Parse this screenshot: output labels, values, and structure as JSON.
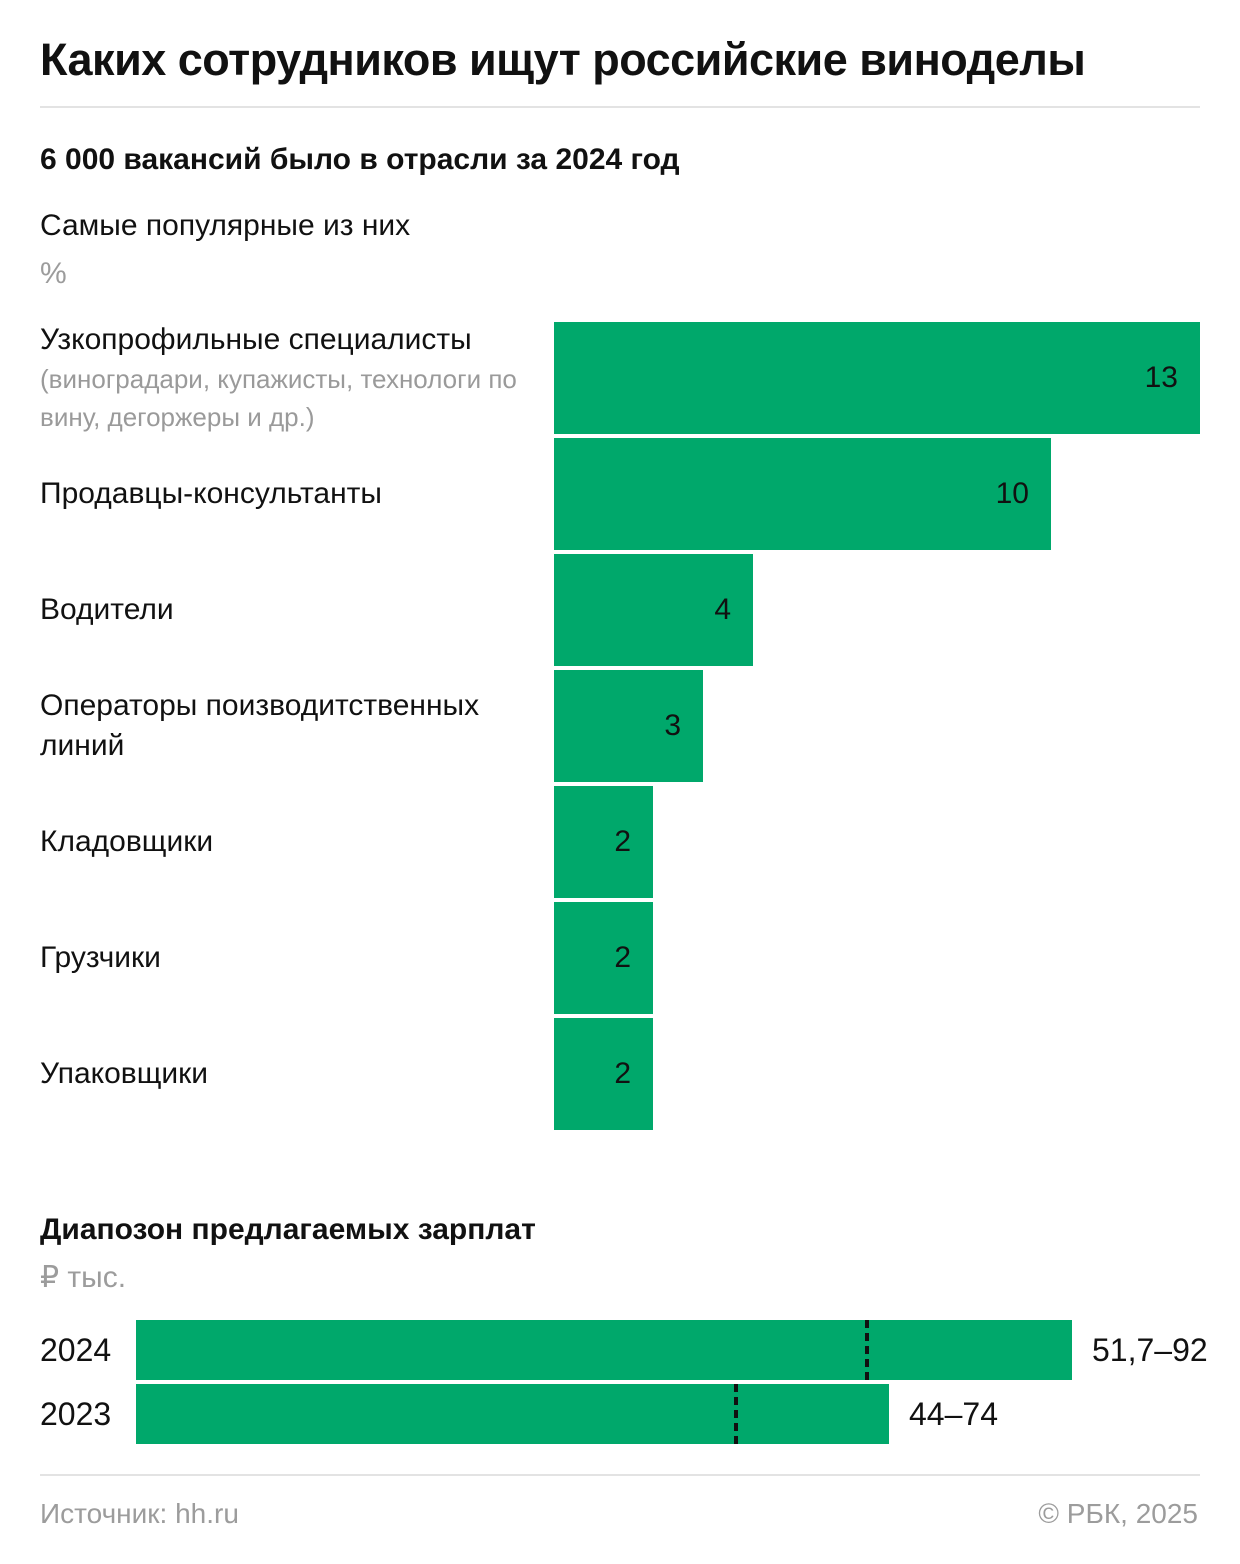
{
  "title": "Каких сотрудников ищут российские виноделы",
  "subtitle": "6 000 вакансий было в отрасли за 2024 год",
  "chart_data": [
    {
      "type": "bar",
      "title": "Самые популярные из них",
      "unit": "%",
      "categories": [
        {
          "label": "Узкопрофильные специалисты",
          "note": "(виноградари, купажисты, технологи по вину, дегоржеры и др.)",
          "value": 13
        },
        {
          "label": "Продавцы-консультанты",
          "note": "",
          "value": 10
        },
        {
          "label": "Водители",
          "note": "",
          "value": 4
        },
        {
          "label": "Операторы поизводитственных линий",
          "note": "",
          "value": 3
        },
        {
          "label": "Кладовщики",
          "note": "",
          "value": 2
        },
        {
          "label": "Грузчики",
          "note": "",
          "value": 2
        },
        {
          "label": "Упаковщики",
          "note": "",
          "value": 2
        }
      ],
      "xlim": [
        0,
        13
      ],
      "color": "#00a86b"
    },
    {
      "type": "bar",
      "title": "Диапозон предлагаемых зарплат",
      "unit": "₽ тыс.",
      "series": [
        {
          "year": "2024",
          "range_label": "51,7–92",
          "min": 51.7,
          "max": 92,
          "median": 71.85
        },
        {
          "year": "2023",
          "range_label": "44–74",
          "min": 44,
          "max": 74,
          "median": 59
        }
      ],
      "color": "#00a86b"
    }
  ],
  "footer": {
    "source": "Источник: hh.ru",
    "copyright": "© РБК, 2025"
  }
}
